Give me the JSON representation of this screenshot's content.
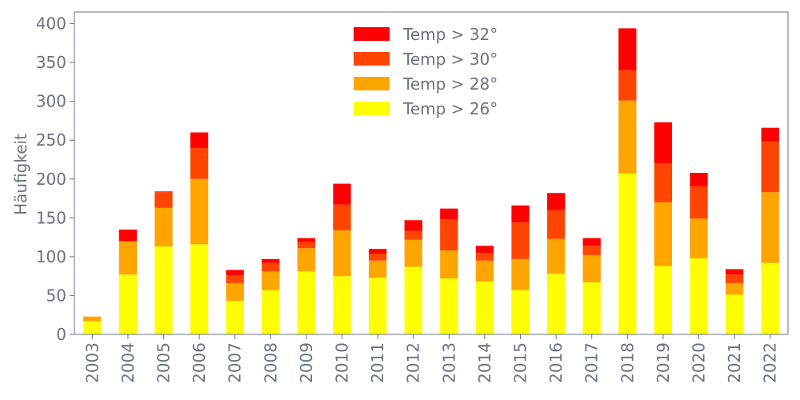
{
  "chart_data": {
    "type": "bar",
    "stacked": true,
    "title": "",
    "xlabel": "",
    "ylabel": "Häufigkeit",
    "ylim": [
      0,
      415
    ],
    "yticks": [
      0,
      50,
      100,
      150,
      200,
      250,
      300,
      350,
      400
    ],
    "grid": false,
    "legend_position": "top-center",
    "categories": [
      "2003",
      "2004",
      "2005",
      "2006",
      "2007",
      "2008",
      "2009",
      "2010",
      "2011",
      "2012",
      "2013",
      "2014",
      "2015",
      "2016",
      "2017",
      "2018",
      "2019",
      "2020",
      "2021",
      "2022"
    ],
    "series": [
      {
        "name": "Temp > 26°",
        "color": "#ffff00",
        "values": [
          17,
          77,
          113,
          116,
          43,
          57,
          81,
          75,
          73,
          87,
          72,
          68,
          57,
          78,
          67,
          207,
          88,
          98,
          51,
          92
        ]
      },
      {
        "name": "Temp > 28°",
        "color": "#ffa500",
        "values": [
          6,
          43,
          50,
          84,
          23,
          24,
          30,
          59,
          22,
          35,
          36,
          27,
          40,
          45,
          35,
          94,
          82,
          51,
          15,
          91
        ]
      },
      {
        "name": "Temp > 30°",
        "color": "#ff4500",
        "values": [
          0,
          0,
          20,
          40,
          10,
          11,
          8,
          33,
          9,
          11,
          40,
          10,
          47,
          37,
          12,
          39,
          50,
          42,
          11,
          65
        ]
      },
      {
        "name": "Temp > 32°",
        "color": "#ff0000",
        "values": [
          0,
          15,
          1,
          20,
          7,
          5,
          5,
          27,
          6,
          14,
          14,
          9,
          22,
          22,
          10,
          54,
          53,
          17,
          7,
          18
        ]
      }
    ],
    "legend_order": [
      "Temp > 32°",
      "Temp > 30°",
      "Temp > 28°",
      "Temp > 26°"
    ]
  }
}
